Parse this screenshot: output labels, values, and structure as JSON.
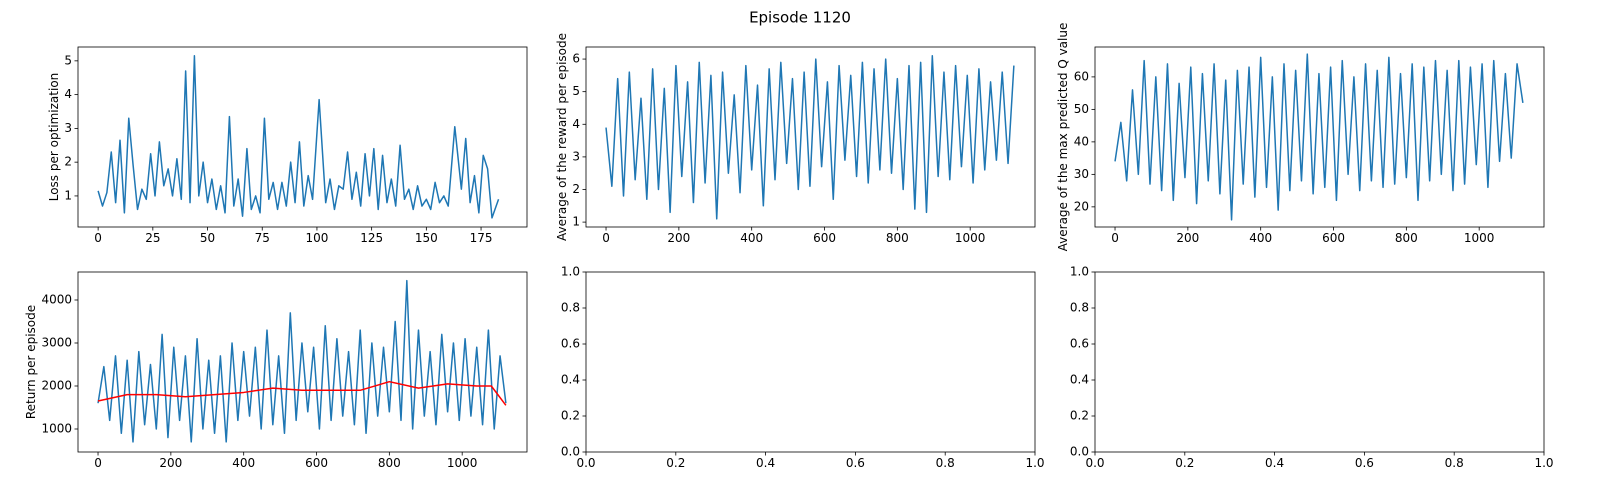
{
  "figure_title": "Episode 1120",
  "chart_data": [
    {
      "type": "line",
      "ylabel": "Loss per optimization",
      "xlim": [
        -9.2,
        196
      ],
      "ylim": [
        0.08,
        5.41
      ],
      "xticks": [
        0,
        25,
        50,
        75,
        100,
        125,
        150,
        175
      ],
      "yticks": [
        1,
        2,
        3,
        4,
        5
      ],
      "series": [
        {
          "color": "#1f77b4",
          "x": [
            0,
            2,
            4,
            6,
            8,
            10,
            12,
            14,
            16,
            18,
            20,
            22,
            24,
            26,
            28,
            30,
            32,
            34,
            36,
            38,
            40,
            42,
            44,
            46,
            48,
            50,
            52,
            54,
            56,
            58,
            60,
            62,
            64,
            66,
            68,
            70,
            72,
            74,
            76,
            78,
            80,
            82,
            84,
            86,
            88,
            90,
            92,
            94,
            96,
            98,
            101,
            104,
            106,
            108,
            110,
            112,
            114,
            116,
            118,
            120,
            122,
            124,
            126,
            128,
            130,
            132,
            134,
            136,
            138,
            140,
            142,
            144,
            146,
            148,
            150,
            152,
            154,
            156,
            158,
            160,
            163,
            166,
            168,
            170,
            172,
            174,
            176,
            178,
            180,
            183
          ],
          "values": [
            1.15,
            0.7,
            1.1,
            2.3,
            0.8,
            2.65,
            0.5,
            3.3,
            1.9,
            0.6,
            1.2,
            0.9,
            2.25,
            1.0,
            2.6,
            1.3,
            1.8,
            1.0,
            2.1,
            0.9,
            4.7,
            0.8,
            5.15,
            1.0,
            2.0,
            0.8,
            1.5,
            0.6,
            1.3,
            0.5,
            3.35,
            0.7,
            1.5,
            0.4,
            2.4,
            0.6,
            1.0,
            0.5,
            3.3,
            0.9,
            1.4,
            0.6,
            1.4,
            0.7,
            2.0,
            0.8,
            2.6,
            0.7,
            1.6,
            0.9,
            3.85,
            0.8,
            1.5,
            0.6,
            1.3,
            1.2,
            2.3,
            0.9,
            1.7,
            0.7,
            2.25,
            1.0,
            2.4,
            0.6,
            2.2,
            0.8,
            1.5,
            0.7,
            2.5,
            0.9,
            1.2,
            0.6,
            1.3,
            0.7,
            0.9,
            0.6,
            1.4,
            0.8,
            1.0,
            0.7,
            3.05,
            1.2,
            2.7,
            0.8,
            1.6,
            0.5,
            2.2,
            1.8,
            0.35,
            0.9
          ]
        }
      ]
    },
    {
      "type": "line",
      "ylabel": "Average of the reward per episode",
      "xlim": [
        -55,
        1178
      ],
      "ylim": [
        0.85,
        6.37
      ],
      "xticks": [
        0,
        200,
        400,
        600,
        800,
        1000
      ],
      "yticks": [
        1,
        2,
        3,
        4,
        5,
        6
      ],
      "series": [
        {
          "color": "#1f77b4",
          "x": [
            0,
            16,
            32,
            48,
            64,
            80,
            96,
            112,
            128,
            144,
            160,
            176,
            192,
            208,
            224,
            240,
            256,
            272,
            288,
            304,
            320,
            336,
            352,
            368,
            384,
            400,
            416,
            432,
            448,
            464,
            480,
            496,
            512,
            528,
            544,
            560,
            576,
            592,
            608,
            624,
            640,
            656,
            672,
            688,
            704,
            720,
            736,
            752,
            768,
            784,
            800,
            816,
            832,
            848,
            864,
            880,
            896,
            912,
            928,
            944,
            960,
            976,
            992,
            1008,
            1024,
            1040,
            1056,
            1072,
            1088,
            1104,
            1120
          ],
          "values": [
            3.9,
            2.1,
            5.4,
            1.8,
            5.6,
            2.3,
            4.8,
            1.7,
            5.7,
            2.0,
            5.1,
            1.3,
            5.8,
            2.4,
            5.3,
            1.6,
            5.9,
            2.2,
            5.5,
            1.1,
            5.6,
            2.5,
            4.9,
            1.9,
            5.8,
            2.6,
            5.2,
            1.5,
            5.7,
            2.3,
            5.9,
            2.8,
            5.4,
            2.0,
            5.6,
            2.1,
            6.0,
            2.7,
            5.3,
            1.7,
            5.8,
            2.9,
            5.5,
            2.4,
            5.9,
            2.2,
            5.7,
            2.6,
            6.0,
            2.5,
            5.4,
            2.0,
            5.8,
            1.4,
            5.9,
            1.3,
            6.1,
            2.4,
            5.6,
            2.3,
            5.8,
            2.7,
            5.5,
            2.2,
            5.7,
            2.6,
            5.3,
            2.9,
            5.6,
            2.8,
            5.8
          ]
        }
      ]
    },
    {
      "type": "line",
      "ylabel": "Average of the max predicted Q value",
      "xlim": [
        -55,
        1178
      ],
      "ylim": [
        13.8,
        69.2
      ],
      "xticks": [
        0,
        200,
        400,
        600,
        800,
        1000
      ],
      "yticks": [
        20,
        30,
        40,
        50,
        60
      ],
      "series": [
        {
          "color": "#1f77b4",
          "x": [
            0,
            16,
            32,
            48,
            64,
            80,
            96,
            112,
            128,
            144,
            160,
            176,
            192,
            208,
            224,
            240,
            256,
            272,
            288,
            304,
            320,
            336,
            352,
            368,
            384,
            400,
            416,
            432,
            448,
            464,
            480,
            496,
            512,
            528,
            544,
            560,
            576,
            592,
            608,
            624,
            640,
            656,
            672,
            688,
            704,
            720,
            736,
            752,
            768,
            784,
            800,
            816,
            832,
            848,
            864,
            880,
            896,
            912,
            928,
            944,
            960,
            976,
            992,
            1008,
            1024,
            1040,
            1056,
            1072,
            1088,
            1104,
            1120
          ],
          "values": [
            34,
            46,
            28,
            56,
            30,
            65,
            27,
            60,
            25,
            64,
            22,
            58,
            29,
            63,
            21,
            61,
            28,
            64,
            24,
            59,
            16,
            62,
            27,
            63,
            23,
            66,
            26,
            60,
            19,
            64,
            25,
            62,
            28,
            67,
            24,
            61,
            26,
            63,
            22,
            65,
            30,
            60,
            25,
            64,
            28,
            62,
            26,
            66,
            27,
            61,
            29,
            64,
            22,
            63,
            28,
            65,
            30,
            62,
            25,
            65,
            27,
            63,
            33,
            64,
            26,
            65,
            34,
            61,
            35,
            64,
            52
          ]
        }
      ]
    },
    {
      "type": "line",
      "ylabel": "Return per episode",
      "xlim": [
        -55,
        1178
      ],
      "ylim": [
        465,
        4651
      ],
      "xticks": [
        0,
        200,
        400,
        600,
        800,
        1000
      ],
      "yticks": [
        1000,
        2000,
        3000,
        4000
      ],
      "series": [
        {
          "color": "#1f77b4",
          "x": [
            0,
            16,
            32,
            48,
            64,
            80,
            96,
            112,
            128,
            144,
            160,
            176,
            192,
            208,
            224,
            240,
            256,
            272,
            288,
            304,
            320,
            336,
            352,
            368,
            384,
            400,
            416,
            432,
            448,
            464,
            480,
            496,
            512,
            528,
            544,
            560,
            576,
            592,
            608,
            624,
            640,
            656,
            672,
            688,
            704,
            720,
            736,
            752,
            768,
            784,
            800,
            816,
            832,
            848,
            864,
            880,
            896,
            912,
            928,
            944,
            960,
            976,
            992,
            1008,
            1024,
            1040,
            1056,
            1072,
            1088,
            1104,
            1120
          ],
          "values": [
            1600,
            2450,
            1200,
            2700,
            900,
            2600,
            700,
            2800,
            1100,
            2500,
            1000,
            3200,
            800,
            2900,
            1200,
            2700,
            700,
            3100,
            1000,
            2600,
            900,
            2700,
            700,
            3000,
            1200,
            2800,
            1300,
            2900,
            1000,
            3300,
            1100,
            2700,
            900,
            3700,
            1200,
            3000,
            1400,
            2900,
            1000,
            3400,
            1200,
            3100,
            1300,
            2800,
            1100,
            3300,
            900,
            3000,
            1300,
            2900,
            1400,
            3500,
            1200,
            4450,
            1000,
            3300,
            1300,
            2800,
            1100,
            3200,
            1400,
            3000,
            1200,
            3100,
            1300,
            2900,
            1100,
            3300,
            1000,
            2700,
            1600
          ]
        },
        {
          "color": "#ff0000",
          "x": [
            0,
            80,
            160,
            240,
            320,
            400,
            480,
            560,
            640,
            720,
            800,
            880,
            960,
            1040,
            1080,
            1120
          ],
          "values": [
            1650,
            1800,
            1800,
            1750,
            1800,
            1850,
            1950,
            1900,
            1900,
            1900,
            2100,
            1950,
            2050,
            2000,
            2000,
            1550
          ]
        }
      ]
    },
    {
      "type": "line",
      "xlim": [
        0,
        1
      ],
      "ylim": [
        0,
        1
      ],
      "xticks": [
        {
          "value": 0,
          "label": "0.0"
        },
        {
          "value": 0.2,
          "label": "0.2"
        },
        {
          "value": 0.4,
          "label": "0.4"
        },
        {
          "value": 0.6,
          "label": "0.6"
        },
        {
          "value": 0.8,
          "label": "0.8"
        },
        {
          "value": 1,
          "label": "1.0"
        }
      ],
      "yticks": [
        {
          "value": 0,
          "label": "0.0"
        },
        {
          "value": 0.2,
          "label": "0.2"
        },
        {
          "value": 0.4,
          "label": "0.4"
        },
        {
          "value": 0.6,
          "label": "0.6"
        },
        {
          "value": 0.8,
          "label": "0.8"
        },
        {
          "value": 1,
          "label": "1.0"
        }
      ]
    },
    {
      "type": "line",
      "xlim": [
        0,
        1
      ],
      "ylim": [
        0,
        1
      ],
      "xticks": [
        {
          "value": 0,
          "label": "0.0"
        },
        {
          "value": 0.2,
          "label": "0.2"
        },
        {
          "value": 0.4,
          "label": "0.4"
        },
        {
          "value": 0.6,
          "label": "0.6"
        },
        {
          "value": 0.8,
          "label": "0.8"
        },
        {
          "value": 1,
          "label": "1.0"
        }
      ],
      "yticks": [
        {
          "value": 0,
          "label": "0.0"
        },
        {
          "value": 0.2,
          "label": "0.2"
        },
        {
          "value": 0.4,
          "label": "0.4"
        },
        {
          "value": 0.6,
          "label": "0.6"
        },
        {
          "value": 0.8,
          "label": "0.8"
        },
        {
          "value": 1,
          "label": "1.0"
        }
      ]
    }
  ]
}
